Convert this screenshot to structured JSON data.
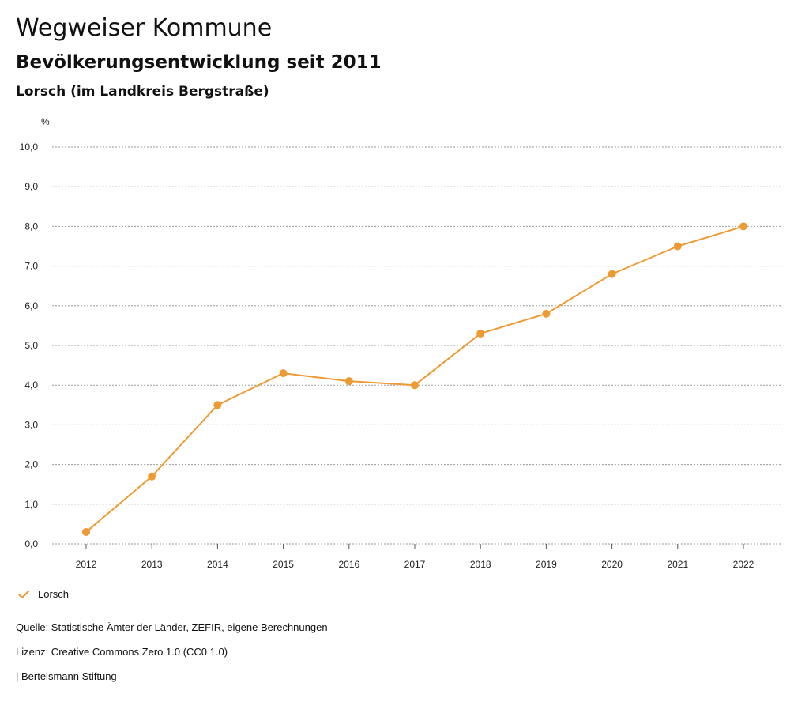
{
  "header": {
    "title": "Wegweiser Kommune",
    "subtitle": "Bevölkerungsentwicklung seit 2011",
    "region": "Lorsch (im Landkreis Bergstraße)"
  },
  "colors": {
    "series": "#EE9A33",
    "grid": "#9a9a9a",
    "axis": "#555555"
  },
  "chart_data": {
    "type": "line",
    "title": "Bevölkerungsentwicklung seit 2011",
    "xlabel": "",
    "ylabel": "%",
    "x": [
      "2012",
      "2013",
      "2014",
      "2015",
      "2016",
      "2017",
      "2018",
      "2019",
      "2020",
      "2021",
      "2022"
    ],
    "series": [
      {
        "name": "Lorsch",
        "values": [
          0.3,
          1.7,
          3.5,
          4.3,
          4.1,
          4.0,
          5.3,
          5.8,
          6.8,
          7.5,
          8.0
        ]
      }
    ],
    "ylim": [
      0,
      10
    ],
    "yticks": [
      "0,0",
      "1,0",
      "2,0",
      "3,0",
      "4,0",
      "5,0",
      "6,0",
      "7,0",
      "8,0",
      "9,0",
      "10,0"
    ],
    "grid": true,
    "legend_position": "bottom-left"
  },
  "legend": {
    "label": "Lorsch"
  },
  "footer": {
    "source": "Quelle: Statistische Ämter der Länder, ZEFIR, eigene Berechnungen",
    "license": "Lizenz: Creative Commons Zero 1.0 (CC0 1.0)",
    "publisher": "| Bertelsmann Stiftung"
  }
}
